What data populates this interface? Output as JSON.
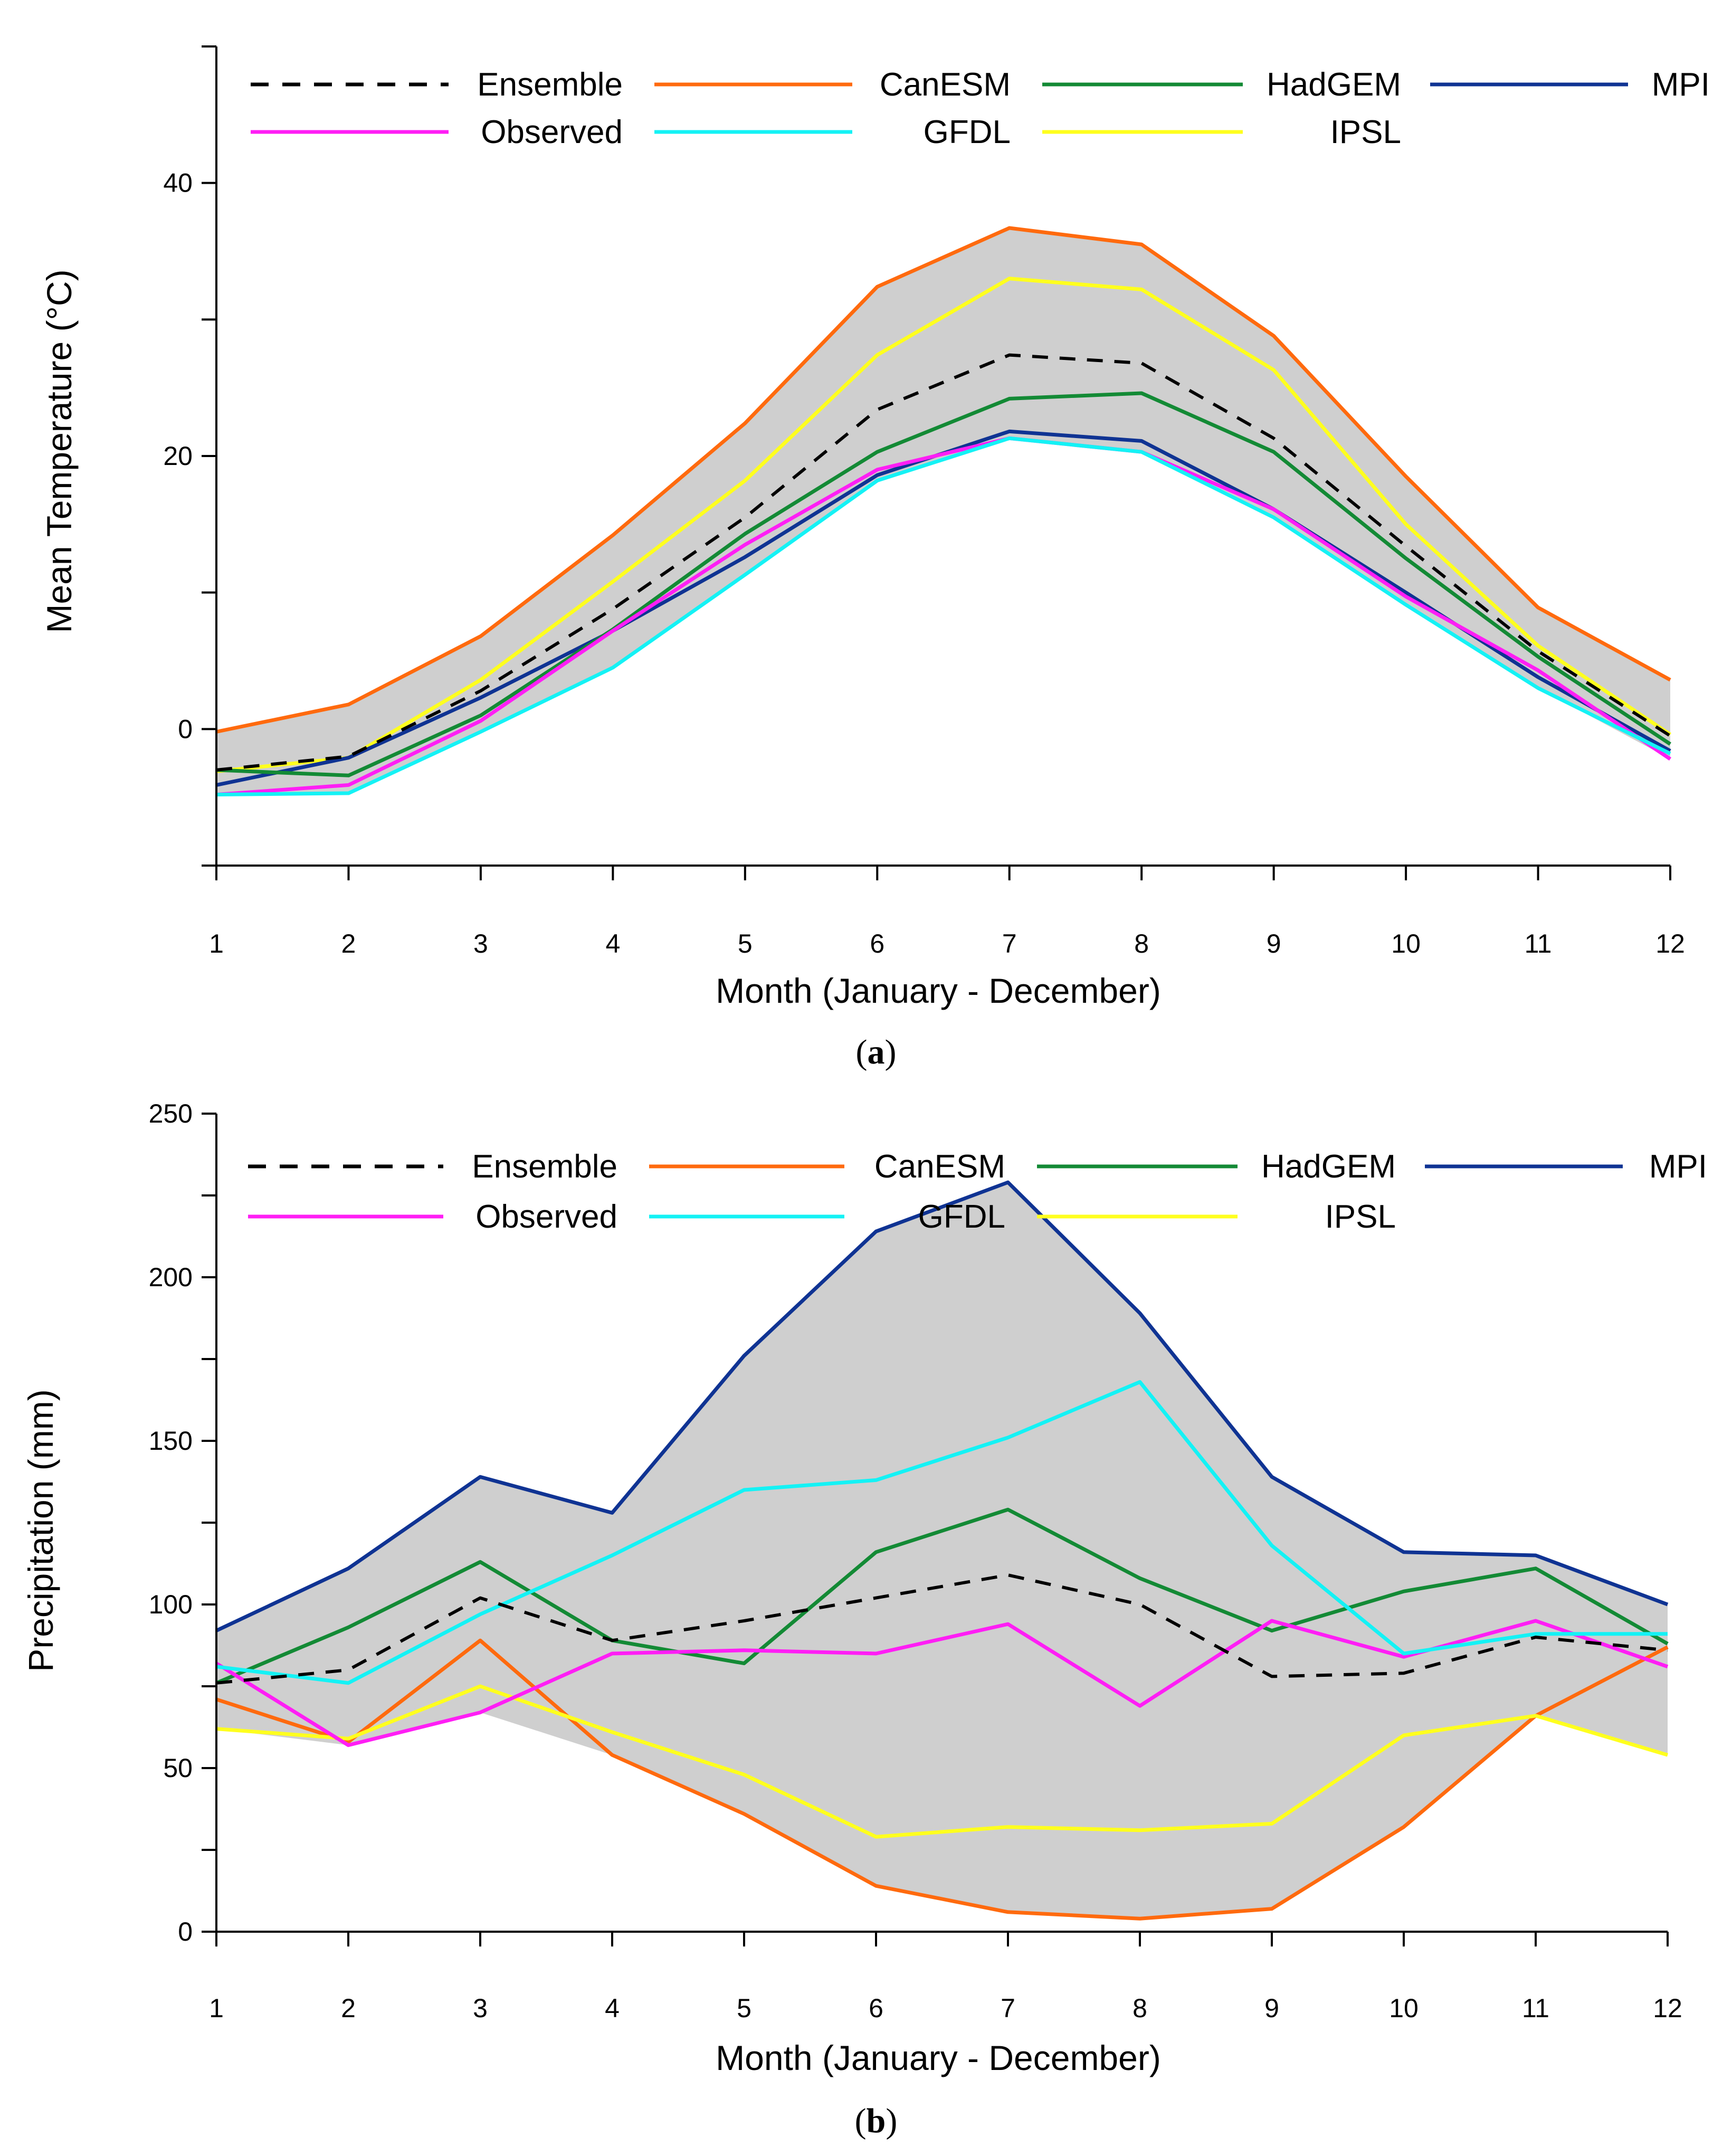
{
  "colors": {
    "Ensemble": "#000000",
    "CanESM": "#ff6a0e",
    "HadGEM": "#138a35",
    "MPI": "#0f3393",
    "Observed": "#ff1ef5",
    "GFDL": "#14f2f5",
    "IPSL": "#ffff1e",
    "band": "#cfcfcf"
  },
  "chart_data": [
    {
      "id": "a",
      "type": "line",
      "caption": "a",
      "xlabel": "Month (January - December)",
      "ylabel": "Mean Temperature (°C)",
      "xlim": [
        1,
        12
      ],
      "ylim": [
        -10,
        50
      ],
      "x": [
        1,
        2,
        3,
        4,
        5,
        6,
        7,
        8,
        9,
        10,
        11,
        12
      ],
      "x_tick_labels": [
        "1",
        "2",
        "3",
        "4",
        "5",
        "6",
        "7",
        "8",
        "9",
        "10",
        "11",
        "12"
      ],
      "y_ticks": [
        -10,
        0,
        10,
        20,
        30,
        40,
        50
      ],
      "y_tick_labels": [
        "0",
        "20",
        "40"
      ],
      "y_tick_label_values": [
        0,
        20,
        40
      ],
      "legend": {
        "placement": "top",
        "entries": [
          "Ensemble",
          "CanESM",
          "HadGEM",
          "MPI",
          "Observed",
          "GFDL",
          "IPSL"
        ]
      },
      "band": "min-max range of models (grey shading)",
      "series": [
        {
          "name": "Ensemble",
          "dashed": true,
          "values": [
            -3.0,
            -2.0,
            2.8,
            8.8,
            15.5,
            23.4,
            27.4,
            26.8,
            21.3,
            13.4,
            5.7,
            -0.5
          ]
        },
        {
          "name": "CanESM",
          "values": [
            -0.2,
            1.8,
            6.8,
            14.2,
            22.4,
            32.4,
            36.7,
            35.5,
            28.8,
            18.5,
            8.9,
            3.6
          ]
        },
        {
          "name": "HadGEM",
          "values": [
            -3.0,
            -3.4,
            1.0,
            7.3,
            14.3,
            20.3,
            24.2,
            24.6,
            20.3,
            12.5,
            5.3,
            -1.1
          ]
        },
        {
          "name": "MPI",
          "values": [
            -4.1,
            -2.1,
            2.3,
            7.2,
            12.6,
            18.6,
            21.8,
            21.1,
            16.1,
            10.0,
            3.8,
            -1.6
          ]
        },
        {
          "name": "Observed",
          "values": [
            -4.8,
            -4.1,
            0.6,
            7.2,
            13.5,
            19.0,
            21.3,
            20.3,
            16.1,
            9.7,
            4.3,
            -2.2
          ]
        },
        {
          "name": "GFDL",
          "values": [
            -4.8,
            -4.7,
            -0.2,
            4.5,
            11.3,
            18.2,
            21.3,
            20.3,
            15.5,
            9.1,
            3.0,
            -1.8
          ]
        },
        {
          "name": "IPSL",
          "values": [
            -3.1,
            -2.1,
            3.6,
            10.8,
            18.2,
            27.4,
            33.0,
            32.2,
            26.3,
            15.0,
            6.1,
            -0.4
          ]
        }
      ]
    },
    {
      "id": "b",
      "type": "line",
      "caption": "b",
      "xlabel": "Month (January - December)",
      "ylabel": "Precipitation (mm)",
      "xlim": [
        1,
        12
      ],
      "ylim": [
        0,
        250
      ],
      "x": [
        1,
        2,
        3,
        4,
        5,
        6,
        7,
        8,
        9,
        10,
        11,
        12
      ],
      "x_tick_labels": [
        "1",
        "2",
        "3",
        "4",
        "5",
        "6",
        "7",
        "8",
        "9",
        "10",
        "11",
        "12"
      ],
      "y_ticks": [
        0,
        25,
        50,
        75,
        100,
        125,
        150,
        175,
        200,
        225,
        250
      ],
      "y_tick_labels": [
        "0",
        "50",
        "100",
        "150",
        "200",
        "250"
      ],
      "y_tick_label_values": [
        0,
        50,
        100,
        150,
        200,
        250
      ],
      "legend": {
        "placement": "top",
        "entries": [
          "Ensemble",
          "CanESM",
          "HadGEM",
          "MPI",
          "Observed",
          "GFDL",
          "IPSL"
        ]
      },
      "band": "min-max range of models (grey shading)",
      "series": [
        {
          "name": "Ensemble",
          "dashed": true,
          "values": [
            76,
            80,
            102,
            89,
            95,
            102,
            109,
            100,
            78,
            79,
            90,
            86
          ]
        },
        {
          "name": "CanESM",
          "values": [
            71,
            58,
            89,
            54,
            36,
            14,
            6,
            4,
            7,
            32,
            66,
            87
          ]
        },
        {
          "name": "HadGEM",
          "values": [
            76,
            93,
            113,
            89,
            82,
            116,
            129,
            108,
            92,
            104,
            111,
            88
          ]
        },
        {
          "name": "MPI",
          "values": [
            92,
            111,
            139,
            128,
            176,
            214,
            229,
            189,
            139,
            116,
            115,
            100
          ]
        },
        {
          "name": "Observed",
          "values": [
            82,
            57,
            67,
            85,
            86,
            85,
            94,
            69,
            95,
            84,
            95,
            81
          ]
        },
        {
          "name": "GFDL",
          "values": [
            81,
            76,
            97,
            115,
            135,
            138,
            151,
            168,
            118,
            85,
            91,
            91
          ]
        },
        {
          "name": "IPSL",
          "values": [
            62,
            59,
            75,
            61,
            48,
            29,
            32,
            31,
            33,
            60,
            66,
            54
          ]
        }
      ]
    }
  ]
}
